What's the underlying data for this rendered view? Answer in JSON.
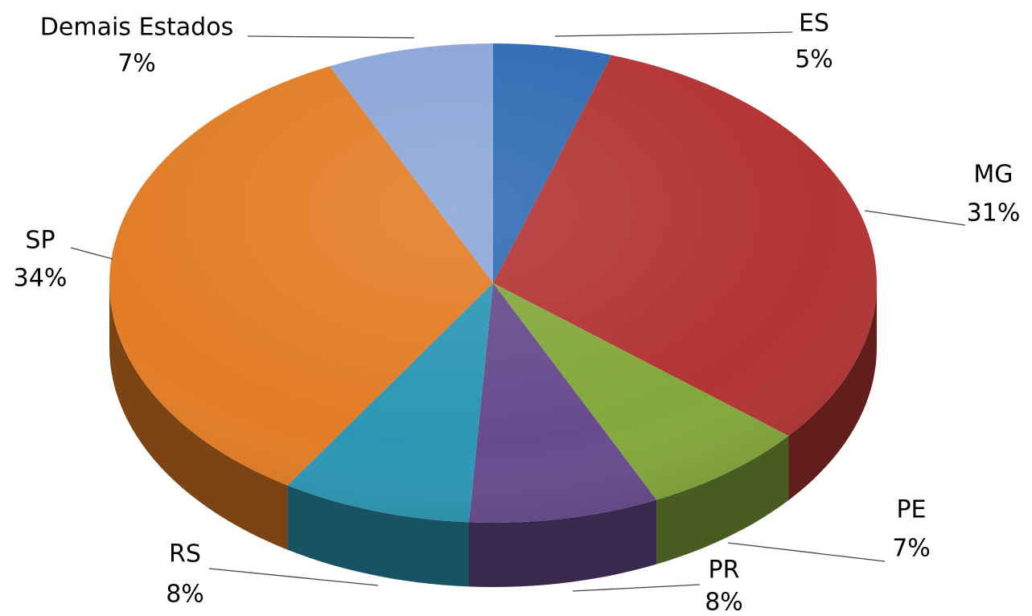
{
  "chart_data": {
    "type": "pie",
    "categories": [
      "ES",
      "MG",
      "PE",
      "PR",
      "RS",
      "SP",
      "Demais Estados"
    ],
    "values": [
      5,
      31,
      7,
      8,
      8,
      34,
      7
    ],
    "value_labels": [
      "5%",
      "31%",
      "7%",
      "8%",
      "8%",
      "34%",
      "7%"
    ],
    "colors": [
      "#2f6bb2",
      "#b33434",
      "#83a83c",
      "#684b8e",
      "#2c97b4",
      "#e27c25",
      "#8ba6d8"
    ],
    "start_angle": 0,
    "direction": "clockwise"
  }
}
